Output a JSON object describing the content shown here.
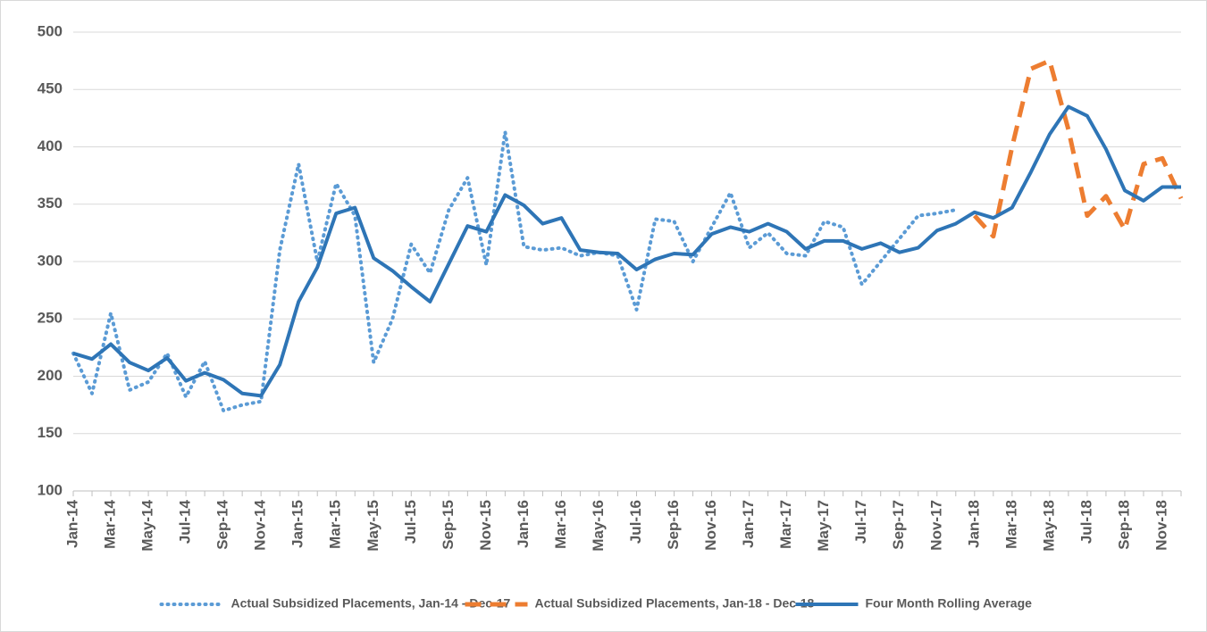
{
  "chart_data": {
    "type": "line",
    "categories": [
      "Jan-14",
      null,
      "Mar-14",
      null,
      "May-14",
      null,
      "Jul-14",
      null,
      "Sep-14",
      null,
      "Nov-14",
      null,
      "Jan-15",
      null,
      "Mar-15",
      null,
      "May-15",
      null,
      "Jul-15",
      null,
      "Sep-15",
      null,
      "Nov-15",
      null,
      "Jan-16",
      null,
      "Mar-16",
      null,
      "May-16",
      null,
      "Jul-16",
      null,
      "Sep-16",
      null,
      "Nov-16",
      null,
      "Jan-17",
      null,
      "Mar-17",
      null,
      "May-17",
      null,
      "Jul-17",
      null,
      "Sep-17",
      null,
      "Nov-17",
      null,
      "Jan-18",
      null,
      "Mar-18",
      null,
      "May-18",
      null,
      "Jul-18",
      null,
      "Sep-18",
      null,
      "Nov-18",
      null
    ],
    "series": [
      {
        "name": "Actual Subsidized Placements, Jan-14 - Dec-17",
        "color": "#5b9bd5",
        "style": "dotted",
        "values": [
          220,
          185,
          255,
          188,
          195,
          220,
          182,
          213,
          170,
          175,
          178,
          310,
          385,
          300,
          368,
          340,
          212,
          250,
          315,
          290,
          345,
          373,
          297,
          413,
          313,
          310,
          312,
          305,
          308,
          305,
          258,
          337,
          335,
          300,
          330,
          360,
          312,
          325,
          307,
          305,
          335,
          330,
          280,
          300,
          320,
          340,
          342,
          345,
          null,
          null,
          null,
          null,
          null,
          null,
          null,
          null,
          null,
          null,
          null,
          null
        ]
      },
      {
        "name": "Actual Subsidized Placements, Jan-18 - Dec-18",
        "color": "#ed7d31",
        "style": "dashed",
        "values": [
          null,
          null,
          null,
          null,
          null,
          null,
          null,
          null,
          null,
          null,
          null,
          null,
          null,
          null,
          null,
          null,
          null,
          null,
          null,
          null,
          null,
          null,
          null,
          null,
          null,
          null,
          null,
          null,
          null,
          null,
          null,
          null,
          null,
          null,
          null,
          null,
          null,
          null,
          null,
          null,
          null,
          null,
          null,
          null,
          null,
          null,
          null,
          null,
          340,
          322,
          400,
          468,
          475,
          415,
          340,
          357,
          328,
          385,
          390,
          355
        ]
      },
      {
        "name": "Four Month Rolling Average",
        "color": "#2e75b6",
        "style": "solid",
        "values": [
          220,
          215,
          228,
          212,
          205,
          216,
          196,
          203,
          197,
          185,
          183,
          210,
          265,
          295,
          342,
          347,
          303,
          292,
          278,
          265,
          298,
          331,
          326,
          358,
          349,
          333,
          338,
          310,
          308,
          307,
          293,
          302,
          307,
          306,
          324,
          330,
          326,
          333,
          326,
          311,
          318,
          318,
          311,
          316,
          308,
          312,
          327,
          333,
          343,
          338,
          347,
          378,
          411,
          435,
          427,
          398,
          362,
          353,
          365,
          365
        ]
      }
    ],
    "ylim": [
      100,
      500
    ],
    "yticks": [
      100,
      150,
      200,
      250,
      300,
      350,
      400,
      450,
      500
    ],
    "grid": true,
    "legend": "bottom"
  }
}
